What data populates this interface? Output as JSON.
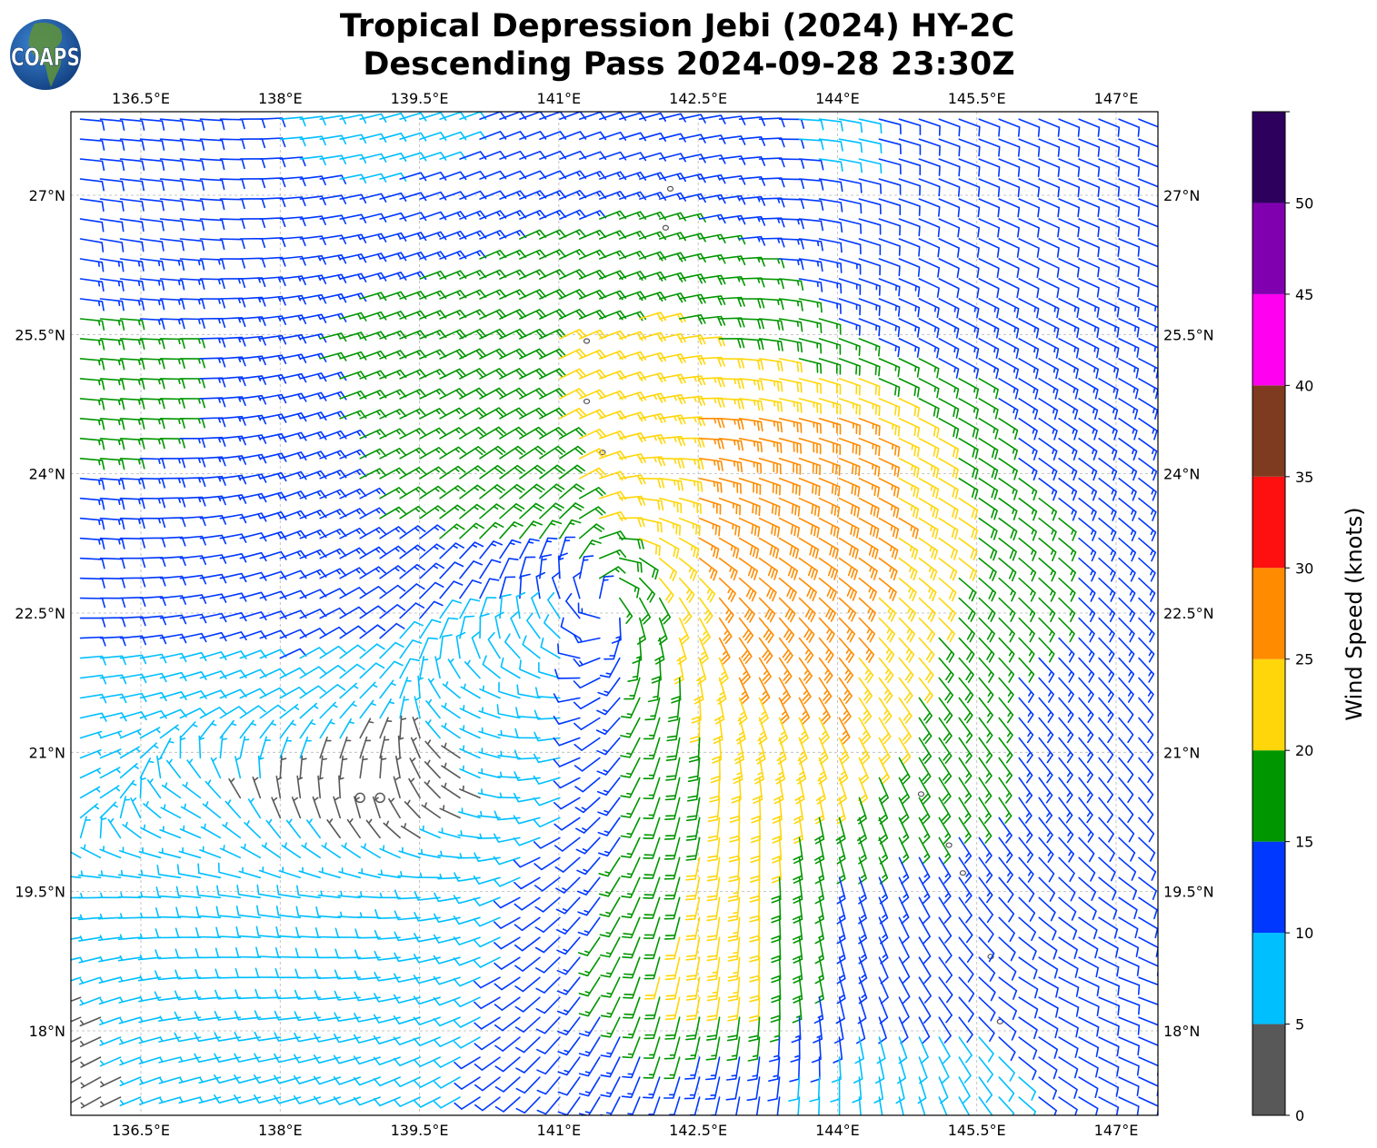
{
  "logo": {
    "text": "COAPS",
    "ocean_color": "#1f5fae",
    "land_color": "#4e8a3a"
  },
  "chart_data": {
    "type": "barbs",
    "title_line1": "Tropical Depression Jebi (2024) HY-2C",
    "title_line2": "Descending Pass 2024-09-28 23:30Z",
    "lon_range": [
      135.75,
      147.45
    ],
    "lat_range": [
      17.09,
      27.9
    ],
    "grid": true,
    "lon_ticks": [
      {
        "value": 136.5,
        "label": "136.5°E"
      },
      {
        "value": 138,
        "label": "138°E"
      },
      {
        "value": 139.5,
        "label": "139.5°E"
      },
      {
        "value": 141,
        "label": "141°E"
      },
      {
        "value": 142.5,
        "label": "142.5°E"
      },
      {
        "value": 144,
        "label": "144°E"
      },
      {
        "value": 145.5,
        "label": "145.5°E"
      },
      {
        "value": 147,
        "label": "147°E"
      }
    ],
    "lat_ticks": [
      {
        "value": 18,
        "label": "18°N"
      },
      {
        "value": 19.5,
        "label": "19.5°N"
      },
      {
        "value": 21,
        "label": "21°N"
      },
      {
        "value": 22.5,
        "label": "22.5°N"
      },
      {
        "value": 24,
        "label": "24°N"
      },
      {
        "value": 25.5,
        "label": "25.5°N"
      },
      {
        "value": 27,
        "label": "27°N"
      }
    ],
    "colorbar": {
      "label": "Wind Speed (knots)",
      "range": [
        0,
        55
      ],
      "bounds": [
        0,
        5,
        10,
        15,
        20,
        25,
        30,
        35,
        40,
        45,
        50,
        55
      ],
      "colors": [
        "#585858",
        "#00bfff",
        "#0038ff",
        "#009600",
        "#ffd60a",
        "#ff8c00",
        "#ff1010",
        "#7f3b20",
        "#ff00f0",
        "#8000b0",
        "#2d005e"
      ],
      "ticks": [
        {
          "value": 0,
          "label": "0"
        },
        {
          "value": 5,
          "label": "5"
        },
        {
          "value": 10,
          "label": "10"
        },
        {
          "value": 15,
          "label": "15"
        },
        {
          "value": 20,
          "label": "20"
        },
        {
          "value": 25,
          "label": "25"
        },
        {
          "value": 30,
          "label": "30"
        },
        {
          "value": 35,
          "label": "35"
        },
        {
          "value": 40,
          "label": "40"
        },
        {
          "value": 45,
          "label": "45"
        },
        {
          "value": 50,
          "label": "50"
        }
      ]
    },
    "wind_field": {
      "units": "knots",
      "direction_convention": "degrees wind blows from",
      "lons": [
        136,
        137,
        138,
        139,
        140,
        141,
        142,
        143,
        144,
        145,
        146,
        147
      ],
      "lats": [
        27.5,
        26.5,
        25.5,
        24.5,
        23.5,
        22.5,
        21.5,
        20.5,
        19.5,
        18.5,
        17.5
      ],
      "speed": [
        [
          11,
          11,
          10,
          8,
          10,
          11,
          11,
          11,
          9,
          12,
          12,
          12
        ],
        [
          12,
          12,
          12,
          13,
          14,
          16,
          17,
          15,
          12,
          12,
          12,
          12
        ],
        [
          16,
          15,
          14,
          17,
          18,
          20,
          21,
          19,
          15,
          13,
          13,
          13
        ],
        [
          17,
          15,
          13,
          16,
          18,
          20,
          24,
          27,
          28,
          21,
          14,
          13
        ],
        [
          13,
          12,
          13,
          15,
          17,
          19,
          22,
          29,
          30,
          23,
          16,
          14
        ],
        [
          11,
          11,
          12,
          12,
          9,
          9,
          18,
          30,
          27,
          21,
          16,
          14
        ],
        [
          8,
          8,
          8,
          6,
          6,
          9,
          16,
          24,
          26,
          19,
          14,
          12
        ],
        [
          5,
          6,
          4,
          2,
          4,
          9,
          17,
          22,
          20,
          18,
          14,
          12
        ],
        [
          6,
          8,
          8,
          7,
          8,
          12,
          18,
          23,
          14,
          12,
          12,
          11
        ],
        [
          5,
          8,
          9,
          8,
          9,
          12,
          20,
          24,
          13,
          11,
          11,
          10
        ],
        [
          4,
          7,
          8,
          8,
          10,
          12,
          14,
          12,
          8,
          8,
          10,
          11
        ]
      ],
      "direction_from": [
        [
          95,
          95,
          85,
          75,
          70,
          70,
          75,
          85,
          100,
          110,
          112,
          112
        ],
        [
          100,
          95,
          85,
          75,
          68,
          65,
          72,
          85,
          105,
          115,
          115,
          112
        ],
        [
          95,
          90,
          80,
          70,
          65,
          65,
          75,
          95,
          110,
          118,
          118,
          115
        ],
        [
          95,
          90,
          75,
          65,
          60,
          62,
          80,
          100,
          108,
          118,
          125,
          125
        ],
        [
          95,
          85,
          70,
          60,
          50,
          45,
          110,
          115,
          118,
          122,
          128,
          130
        ],
        [
          90,
          80,
          70,
          55,
          30,
          330,
          160,
          140,
          135,
          135,
          135,
          135
        ],
        [
          80,
          70,
          60,
          40,
          300,
          270,
          200,
          160,
          150,
          145,
          140,
          140
        ],
        [
          60,
          300,
          350,
          0,
          300,
          250,
          200,
          180,
          165,
          150,
          145,
          140
        ],
        [
          270,
          275,
          280,
          275,
          260,
          230,
          200,
          185,
          165,
          150,
          135,
          125
        ],
        [
          250,
          265,
          270,
          265,
          250,
          225,
          195,
          185,
          165,
          145,
          120,
          110
        ],
        [
          240,
          255,
          255,
          250,
          240,
          220,
          200,
          190,
          180,
          160,
          130,
          115
        ]
      ]
    },
    "islands": [
      {
        "lon": 142.2,
        "lat": 27.07
      },
      {
        "lon": 142.15,
        "lat": 26.65
      },
      {
        "lon": 141.3,
        "lat": 24.78
      },
      {
        "lon": 141.3,
        "lat": 25.43
      },
      {
        "lon": 141.47,
        "lat": 24.23
      },
      {
        "lon": 145.65,
        "lat": 18.8
      },
      {
        "lon": 145.75,
        "lat": 18.1
      },
      {
        "lon": 144.9,
        "lat": 20.55
      },
      {
        "lon": 145.2,
        "lat": 20.0
      },
      {
        "lon": 145.35,
        "lat": 19.7
      }
    ]
  }
}
